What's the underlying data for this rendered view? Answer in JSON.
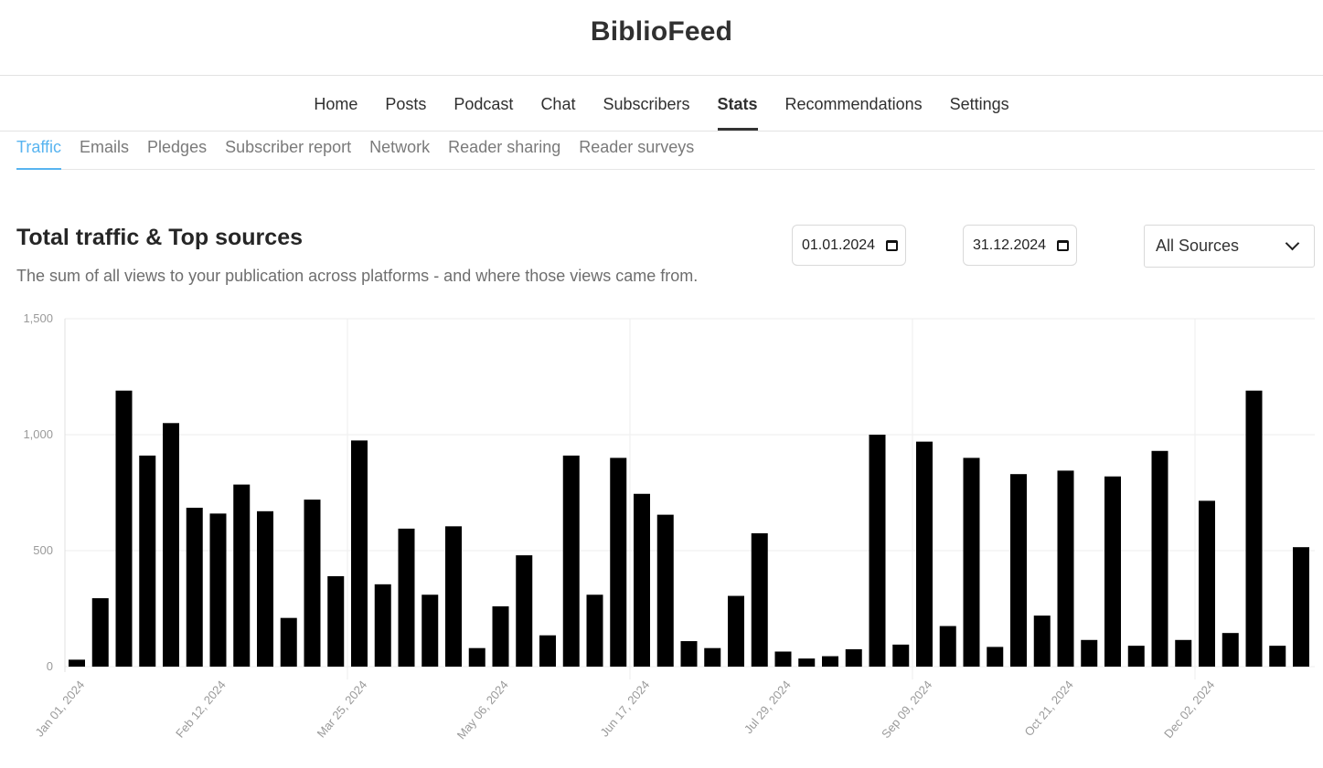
{
  "app": {
    "title": "BiblioFeed"
  },
  "main_nav": [
    {
      "label": "Home",
      "active": false
    },
    {
      "label": "Posts",
      "active": false
    },
    {
      "label": "Podcast",
      "active": false
    },
    {
      "label": "Chat",
      "active": false
    },
    {
      "label": "Subscribers",
      "active": false
    },
    {
      "label": "Stats",
      "active": true
    },
    {
      "label": "Recommendations",
      "active": false
    },
    {
      "label": "Settings",
      "active": false
    }
  ],
  "sub_nav": [
    {
      "label": "Traffic",
      "active": true
    },
    {
      "label": "Emails",
      "active": false
    },
    {
      "label": "Pledges",
      "active": false
    },
    {
      "label": "Subscriber report",
      "active": false
    },
    {
      "label": "Network",
      "active": false
    },
    {
      "label": "Reader sharing",
      "active": false
    },
    {
      "label": "Reader surveys",
      "active": false
    }
  ],
  "section": {
    "title": "Total traffic & Top sources",
    "subtitle": "The sum of all views to your publication across platforms - and where those views came from."
  },
  "filters": {
    "start_date": "01.01.2024",
    "end_date": "31.12.2024",
    "source": "All Sources"
  },
  "colors": {
    "accent": "#58b4f0",
    "bar": "#000000",
    "grid": "#eeeeee"
  },
  "chart_data": {
    "type": "bar",
    "title": "",
    "xlabel": "",
    "ylabel": "",
    "ylim": [
      0,
      1500
    ],
    "y_ticks": [
      0,
      500,
      1000,
      1500
    ],
    "y_tick_labels": [
      "0",
      "500",
      "1,000",
      "1,500"
    ],
    "x_tick_labels": [
      "Jan 01, 2024",
      "Feb 12, 2024",
      "Mar 25, 2024",
      "May 06, 2024",
      "Jun 17, 2024",
      "Jul 29, 2024",
      "Sep 09, 2024",
      "Oct 21, 2024",
      "Dec 02, 2024"
    ],
    "categories": [
      "Jan 01, 2024",
      "Jan 08, 2024",
      "Jan 15, 2024",
      "Jan 22, 2024",
      "Jan 29, 2024",
      "Feb 05, 2024",
      "Feb 12, 2024",
      "Feb 19, 2024",
      "Feb 26, 2024",
      "Mar 04, 2024",
      "Mar 11, 2024",
      "Mar 18, 2024",
      "Mar 25, 2024",
      "Apr 01, 2024",
      "Apr 08, 2024",
      "Apr 15, 2024",
      "Apr 22, 2024",
      "Apr 29, 2024",
      "May 06, 2024",
      "May 13, 2024",
      "May 20, 2024",
      "May 27, 2024",
      "Jun 03, 2024",
      "Jun 10, 2024",
      "Jun 17, 2024",
      "Jun 24, 2024",
      "Jul 01, 2024",
      "Jul 08, 2024",
      "Jul 15, 2024",
      "Jul 22, 2024",
      "Jul 29, 2024",
      "Aug 05, 2024",
      "Aug 12, 2024",
      "Aug 19, 2024",
      "Aug 26, 2024",
      "Sep 02, 2024",
      "Sep 09, 2024",
      "Sep 16, 2024",
      "Sep 23, 2024",
      "Sep 30, 2024",
      "Oct 07, 2024",
      "Oct 14, 2024",
      "Oct 21, 2024",
      "Oct 28, 2024",
      "Nov 04, 2024",
      "Nov 11, 2024",
      "Nov 18, 2024",
      "Nov 25, 2024",
      "Dec 02, 2024",
      "Dec 09, 2024",
      "Dec 16, 2024",
      "Dec 23, 2024",
      "Dec 30, 2024"
    ],
    "values": [
      30,
      295,
      1190,
      910,
      1050,
      685,
      660,
      785,
      670,
      210,
      720,
      390,
      975,
      355,
      595,
      310,
      605,
      80,
      260,
      480,
      135,
      910,
      310,
      900,
      745,
      655,
      110,
      80,
      305,
      575,
      65,
      35,
      45,
      75,
      1000,
      95,
      970,
      175,
      900,
      85,
      830,
      220,
      845,
      115,
      820,
      90,
      930,
      115,
      715,
      145,
      1190,
      90,
      515
    ]
  }
}
